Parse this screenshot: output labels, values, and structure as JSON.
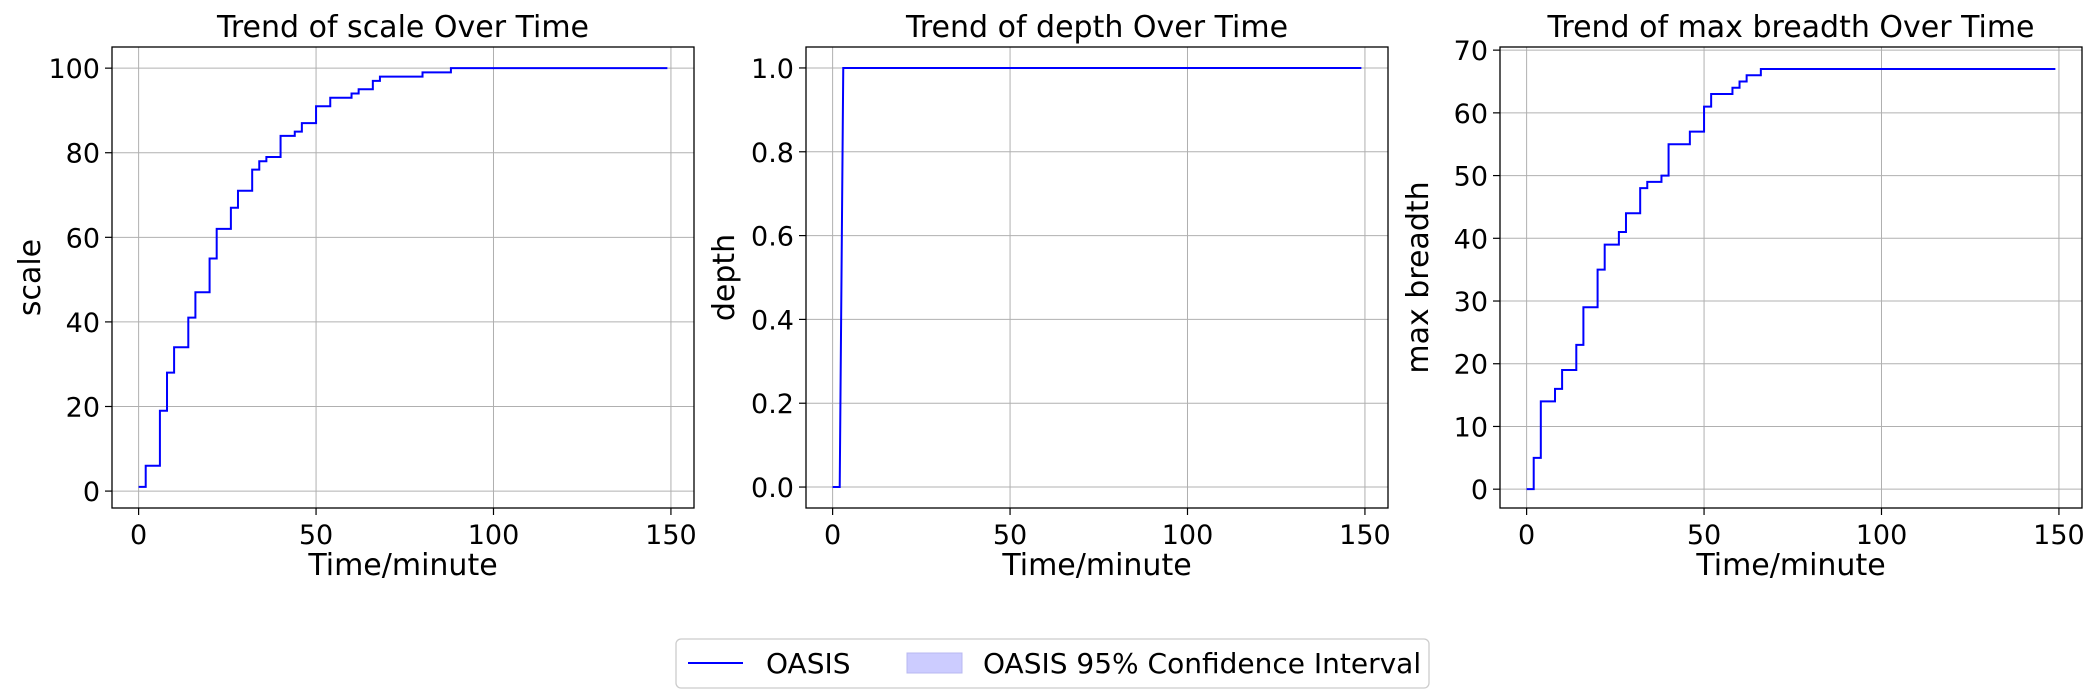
{
  "legend": {
    "line_label": "OASIS",
    "interval_label": "OASIS 95% Confidence Interval",
    "line_color": "#0000ff",
    "interval_color": "#ccccff"
  },
  "chart_data": [
    {
      "type": "line",
      "title": "Trend of scale Over Time",
      "xlabel": "Time/minute",
      "ylabel": "scale",
      "xlim": [
        -7.5,
        156.5
      ],
      "ylim": [
        -4,
        105
      ],
      "xticks": [
        0,
        50,
        100,
        150
      ],
      "yticks": [
        0,
        20,
        40,
        60,
        80,
        100
      ],
      "ytick_labels": [
        "0",
        "20",
        "40",
        "60",
        "80",
        "100"
      ],
      "grid": true,
      "series": [
        {
          "name": "OASIS",
          "color": "#0000ff",
          "x": [
            0,
            2,
            2,
            4,
            4,
            6,
            6,
            8,
            8,
            10,
            10,
            12,
            12,
            14,
            14,
            16,
            16,
            18,
            18,
            20,
            20,
            22,
            22,
            24,
            24,
            26,
            26,
            28,
            28,
            30,
            30,
            32,
            32,
            34,
            34,
            36,
            36,
            38,
            38,
            40,
            40,
            42,
            42,
            44,
            44,
            46,
            46,
            48,
            48,
            50,
            50,
            52,
            52,
            54,
            54,
            58,
            58,
            60,
            60,
            62,
            62,
            64,
            64,
            66,
            66,
            68,
            68,
            70,
            70,
            80,
            80,
            86,
            86,
            88,
            88,
            149
          ],
          "y": [
            1,
            1,
            6,
            6,
            6,
            6,
            19,
            19,
            28,
            28,
            34,
            34,
            34,
            34,
            41,
            41,
            47,
            47,
            47,
            47,
            55,
            55,
            62,
            62,
            62,
            62,
            67,
            67,
            71,
            71,
            71,
            71,
            76,
            76,
            78,
            78,
            79,
            79,
            79,
            79,
            84,
            84,
            84,
            84,
            85,
            85,
            87,
            87,
            87,
            87,
            91,
            91,
            91,
            91,
            93,
            93,
            93,
            93,
            94,
            94,
            95,
            95,
            95,
            95,
            97,
            97,
            98,
            98,
            98,
            98,
            99,
            99,
            99,
            99,
            100,
            100
          ]
        }
      ]
    },
    {
      "type": "line",
      "title": "Trend of depth Over Time",
      "xlabel": "Time/minute",
      "ylabel": "depth",
      "xlim": [
        -7.5,
        156.5
      ],
      "ylim": [
        -0.05,
        1.05
      ],
      "xticks": [
        0,
        50,
        100,
        150
      ],
      "yticks": [
        0,
        0.2,
        0.4,
        0.6,
        0.8,
        1.0
      ],
      "ytick_labels": [
        "0.0",
        "0.2",
        "0.4",
        "0.6",
        "0.8",
        "1.0"
      ],
      "grid": true,
      "series": [
        {
          "name": "OASIS",
          "color": "#0000ff",
          "x": [
            0,
            2,
            3,
            149
          ],
          "y": [
            0,
            0,
            1,
            1
          ]
        }
      ]
    },
    {
      "type": "line",
      "title": "Trend of max breadth Over Time",
      "xlabel": "Time/minute",
      "ylabel": "max breadth",
      "xlim": [
        -7.5,
        156.5
      ],
      "ylim": [
        -3,
        70.5
      ],
      "xticks": [
        0,
        50,
        100,
        150
      ],
      "yticks": [
        0,
        10,
        20,
        30,
        40,
        50,
        60,
        70
      ],
      "ytick_labels": [
        "0",
        "10",
        "20",
        "30",
        "40",
        "50",
        "60",
        "70"
      ],
      "grid": true,
      "series": [
        {
          "name": "OASIS",
          "color": "#0000ff",
          "x": [
            0,
            2,
            2,
            4,
            4,
            6,
            6,
            8,
            8,
            10,
            10,
            12,
            12,
            14,
            14,
            16,
            16,
            18,
            18,
            20,
            20,
            22,
            22,
            24,
            24,
            26,
            26,
            28,
            28,
            30,
            30,
            32,
            32,
            34,
            34,
            36,
            36,
            38,
            38,
            40,
            40,
            42,
            42,
            46,
            46,
            48,
            48,
            50,
            50,
            52,
            52,
            54,
            54,
            58,
            58,
            60,
            60,
            62,
            62,
            64,
            64,
            66,
            66,
            68,
            68,
            149
          ],
          "y": [
            0,
            0,
            5,
            5,
            14,
            14,
            14,
            14,
            16,
            16,
            19,
            19,
            19,
            19,
            23,
            23,
            29,
            29,
            29,
            29,
            35,
            35,
            39,
            39,
            39,
            39,
            41,
            41,
            44,
            44,
            44,
            44,
            48,
            48,
            49,
            49,
            49,
            49,
            50,
            50,
            55,
            55,
            55,
            55,
            57,
            57,
            57,
            57,
            61,
            61,
            63,
            63,
            63,
            63,
            64,
            64,
            65,
            65,
            66,
            66,
            66,
            66,
            67,
            67,
            67,
            67
          ]
        }
      ]
    }
  ]
}
